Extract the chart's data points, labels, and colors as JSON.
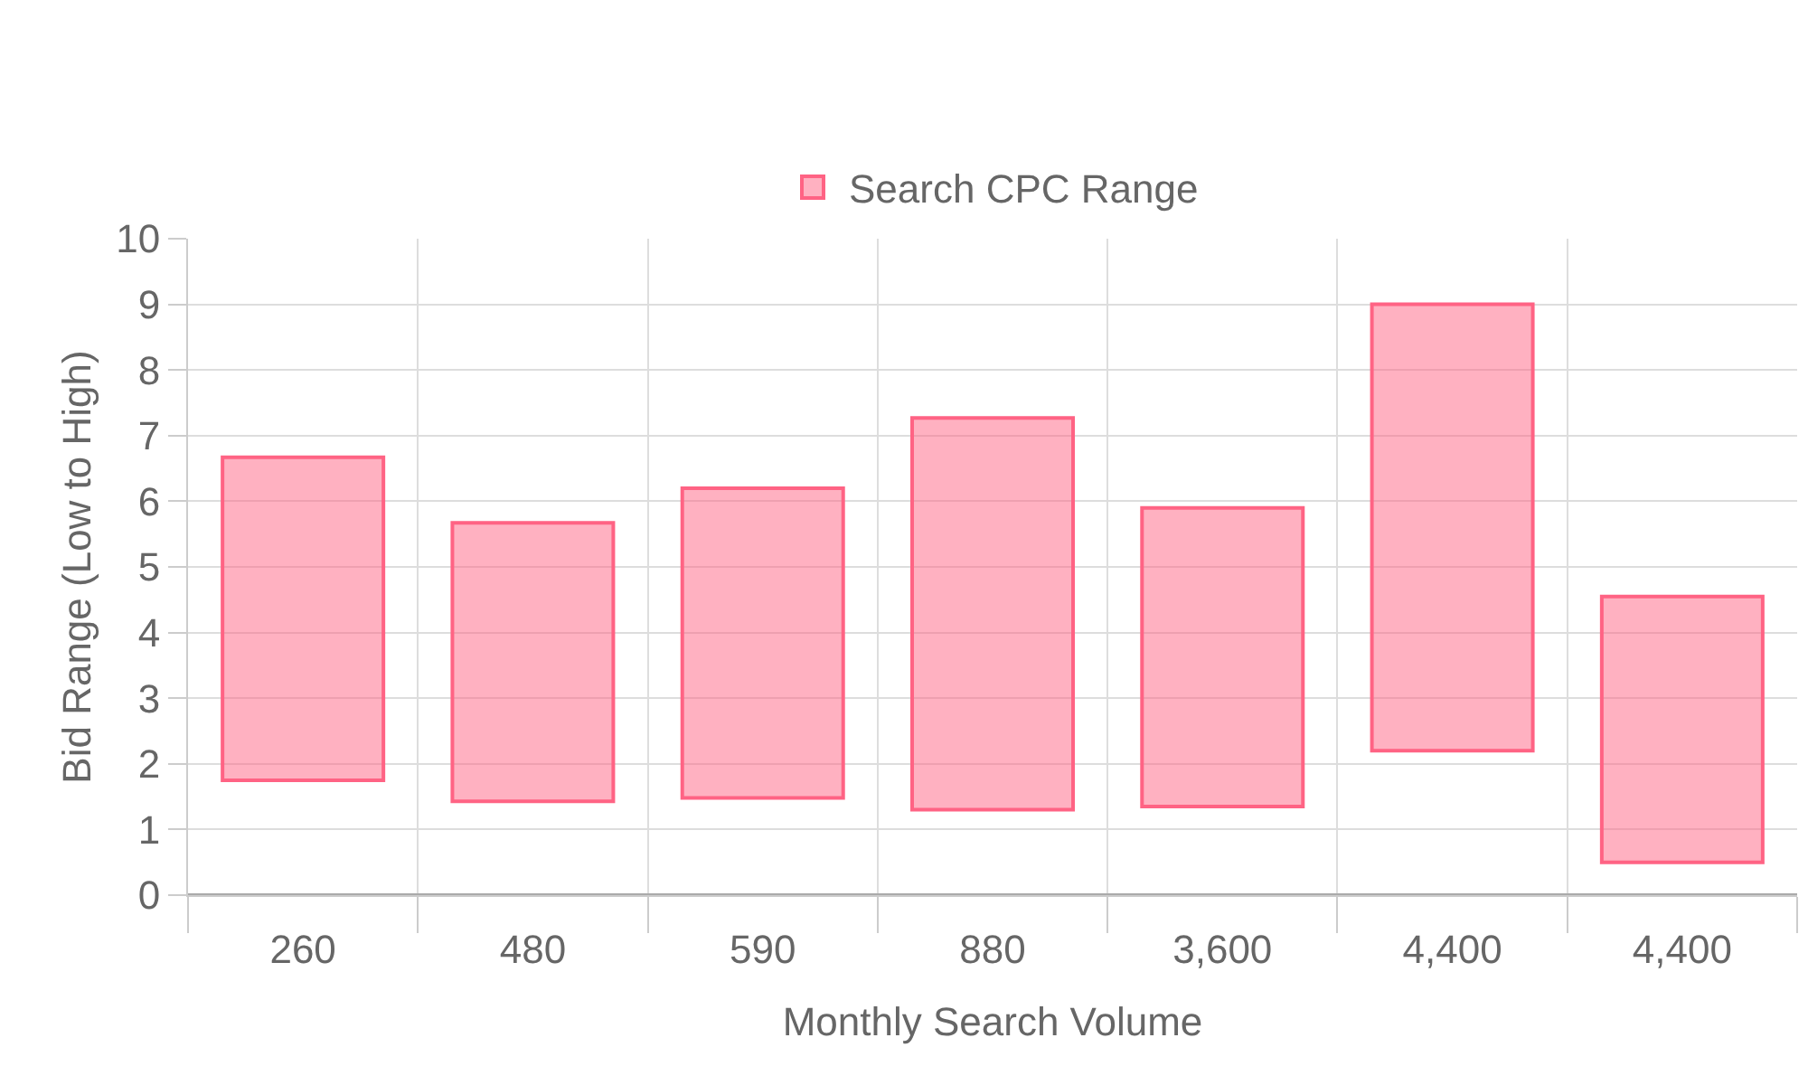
{
  "chart_data": {
    "type": "bar",
    "xlabel": "Monthly Search Volume",
    "ylabel": "Bid Range (Low to High)",
    "categories": [
      "260",
      "480",
      "590",
      "880",
      "3,600",
      "4,400",
      "4,400"
    ],
    "series": [
      {
        "name": "Search CPC Range",
        "color": "#ff6384",
        "base": [
          1.75,
          1.43,
          1.48,
          1.3,
          1.35,
          2.2,
          0.5
        ],
        "values": [
          4.92,
          4.24,
          4.72,
          5.97,
          4.55,
          6.8,
          4.05
        ]
      }
    ],
    "ylim": [
      0,
      10
    ],
    "yticks": [
      0,
      1,
      2,
      3,
      4,
      5,
      6,
      7,
      8,
      9,
      10
    ],
    "grid": true,
    "legend": "top"
  }
}
